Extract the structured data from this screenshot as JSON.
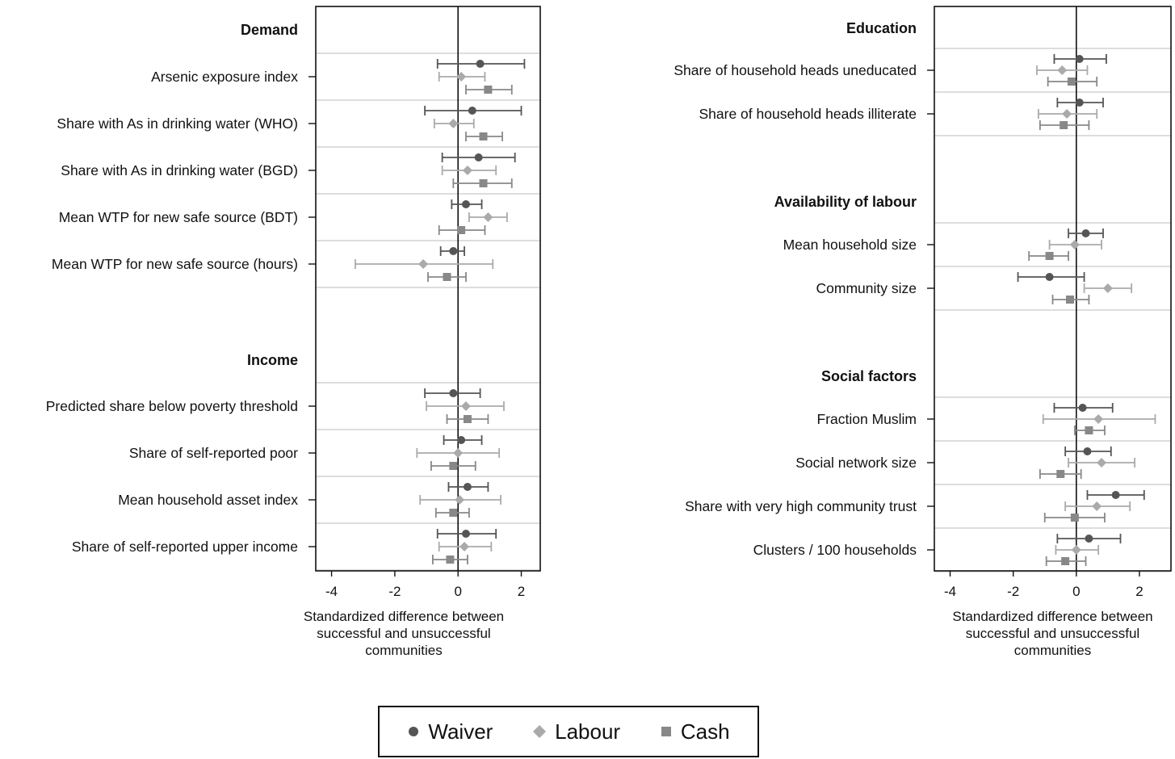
{
  "chart_data": {
    "type": "forest",
    "x_axis_label": "Standardized difference between successful and unsuccessful communities",
    "x_ticks": [
      -4,
      -2,
      0,
      2
    ],
    "legend": [
      {
        "name": "Waiver",
        "marker": "circle",
        "color": "#555555"
      },
      {
        "name": "Labour",
        "marker": "diamond",
        "color": "#aaaaaa"
      },
      {
        "name": "Cash",
        "marker": "square",
        "color": "#888888"
      }
    ],
    "panels": [
      {
        "xlim": [
          -4.5,
          2.6
        ],
        "sections": [
          {
            "title": "Demand",
            "items": [
              {
                "label": "Arsenic exposure index",
                "values": [
                  {
                    "series": "Waiver",
                    "est": 0.7,
                    "lo": -0.65,
                    "hi": 2.1
                  },
                  {
                    "series": "Labour",
                    "est": 0.1,
                    "lo": -0.6,
                    "hi": 0.85
                  },
                  {
                    "series": "Cash",
                    "est": 0.95,
                    "lo": 0.25,
                    "hi": 1.7
                  }
                ]
              },
              {
                "label": "Share with As in drinking water (WHO)",
                "values": [
                  {
                    "series": "Waiver",
                    "est": 0.45,
                    "lo": -1.05,
                    "hi": 2.0
                  },
                  {
                    "series": "Labour",
                    "est": -0.15,
                    "lo": -0.75,
                    "hi": 0.5
                  },
                  {
                    "series": "Cash",
                    "est": 0.8,
                    "lo": 0.25,
                    "hi": 1.4
                  }
                ]
              },
              {
                "label": "Share with As in drinking water (BGD)",
                "values": [
                  {
                    "series": "Waiver",
                    "est": 0.65,
                    "lo": -0.5,
                    "hi": 1.8
                  },
                  {
                    "series": "Labour",
                    "est": 0.3,
                    "lo": -0.5,
                    "hi": 1.2
                  },
                  {
                    "series": "Cash",
                    "est": 0.8,
                    "lo": -0.15,
                    "hi": 1.7
                  }
                ]
              },
              {
                "label": "Mean WTP for new safe source (BDT)",
                "values": [
                  {
                    "series": "Waiver",
                    "est": 0.25,
                    "lo": -0.2,
                    "hi": 0.75
                  },
                  {
                    "series": "Labour",
                    "est": 0.95,
                    "lo": 0.35,
                    "hi": 1.55
                  },
                  {
                    "series": "Cash",
                    "est": 0.1,
                    "lo": -0.6,
                    "hi": 0.85
                  }
                ]
              },
              {
                "label": "Mean WTP for new safe source (hours)",
                "values": [
                  {
                    "series": "Waiver",
                    "est": -0.15,
                    "lo": -0.55,
                    "hi": 0.2
                  },
                  {
                    "series": "Labour",
                    "est": -1.1,
                    "lo": -3.25,
                    "hi": 1.1
                  },
                  {
                    "series": "Cash",
                    "est": -0.35,
                    "lo": -0.95,
                    "hi": 0.25
                  }
                ]
              }
            ]
          },
          {
            "title": "Income",
            "items": [
              {
                "label": "Predicted share below poverty threshold",
                "values": [
                  {
                    "series": "Waiver",
                    "est": -0.15,
                    "lo": -1.05,
                    "hi": 0.7
                  },
                  {
                    "series": "Labour",
                    "est": 0.25,
                    "lo": -1.0,
                    "hi": 1.45
                  },
                  {
                    "series": "Cash",
                    "est": 0.3,
                    "lo": -0.35,
                    "hi": 0.95
                  }
                ]
              },
              {
                "label": "Share of self-reported poor",
                "values": [
                  {
                    "series": "Waiver",
                    "est": 0.1,
                    "lo": -0.45,
                    "hi": 0.75
                  },
                  {
                    "series": "Labour",
                    "est": 0.0,
                    "lo": -1.3,
                    "hi": 1.3
                  },
                  {
                    "series": "Cash",
                    "est": -0.15,
                    "lo": -0.85,
                    "hi": 0.55
                  }
                ]
              },
              {
                "label": "Mean household asset index",
                "values": [
                  {
                    "series": "Waiver",
                    "est": 0.3,
                    "lo": -0.3,
                    "hi": 0.95
                  },
                  {
                    "series": "Labour",
                    "est": 0.05,
                    "lo": -1.2,
                    "hi": 1.35
                  },
                  {
                    "series": "Cash",
                    "est": -0.15,
                    "lo": -0.7,
                    "hi": 0.35
                  }
                ]
              },
              {
                "label": "Share of self-reported upper income",
                "values": [
                  {
                    "series": "Waiver",
                    "est": 0.25,
                    "lo": -0.65,
                    "hi": 1.2
                  },
                  {
                    "series": "Labour",
                    "est": 0.2,
                    "lo": -0.6,
                    "hi": 1.05
                  },
                  {
                    "series": "Cash",
                    "est": -0.25,
                    "lo": -0.8,
                    "hi": 0.3
                  }
                ]
              }
            ]
          }
        ]
      },
      {
        "xlim": [
          -4.5,
          3.0
        ],
        "sections": [
          {
            "title": "Education",
            "items": [
              {
                "label": "Share of household heads uneducated",
                "values": [
                  {
                    "series": "Waiver",
                    "est": 0.1,
                    "lo": -0.7,
                    "hi": 0.95
                  },
                  {
                    "series": "Labour",
                    "est": -0.45,
                    "lo": -1.25,
                    "hi": 0.35
                  },
                  {
                    "series": "Cash",
                    "est": -0.15,
                    "lo": -0.9,
                    "hi": 0.65
                  }
                ]
              },
              {
                "label": "Share of household heads illiterate",
                "values": [
                  {
                    "series": "Waiver",
                    "est": 0.1,
                    "lo": -0.6,
                    "hi": 0.85
                  },
                  {
                    "series": "Labour",
                    "est": -0.3,
                    "lo": -1.2,
                    "hi": 0.65
                  },
                  {
                    "series": "Cash",
                    "est": -0.4,
                    "lo": -1.15,
                    "hi": 0.4
                  }
                ]
              }
            ]
          },
          {
            "title": "Availability of labour",
            "items": [
              {
                "label": "Mean household size",
                "values": [
                  {
                    "series": "Waiver",
                    "est": 0.3,
                    "lo": -0.25,
                    "hi": 0.85
                  },
                  {
                    "series": "Labour",
                    "est": -0.05,
                    "lo": -0.85,
                    "hi": 0.8
                  },
                  {
                    "series": "Cash",
                    "est": -0.85,
                    "lo": -1.5,
                    "hi": -0.25
                  }
                ]
              },
              {
                "label": "Community size",
                "values": [
                  {
                    "series": "Waiver",
                    "est": -0.85,
                    "lo": -1.85,
                    "hi": 0.25
                  },
                  {
                    "series": "Labour",
                    "est": 1.0,
                    "lo": 0.25,
                    "hi": 1.75
                  },
                  {
                    "series": "Cash",
                    "est": -0.2,
                    "lo": -0.75,
                    "hi": 0.4
                  }
                ]
              }
            ]
          },
          {
            "title": "Social factors",
            "items": [
              {
                "label": "Fraction Muslim",
                "values": [
                  {
                    "series": "Waiver",
                    "est": 0.2,
                    "lo": -0.7,
                    "hi": 1.15
                  },
                  {
                    "series": "Labour",
                    "est": 0.7,
                    "lo": -1.05,
                    "hi": 2.5
                  },
                  {
                    "series": "Cash",
                    "est": 0.4,
                    "lo": -0.05,
                    "hi": 0.9
                  }
                ]
              },
              {
                "label": "Social network size",
                "values": [
                  {
                    "series": "Waiver",
                    "est": 0.35,
                    "lo": -0.35,
                    "hi": 1.1
                  },
                  {
                    "series": "Labour",
                    "est": 0.8,
                    "lo": -0.25,
                    "hi": 1.85
                  },
                  {
                    "series": "Cash",
                    "est": -0.5,
                    "lo": -1.15,
                    "hi": 0.15
                  }
                ]
              },
              {
                "label": "Share with very high community trust",
                "values": [
                  {
                    "series": "Waiver",
                    "est": 1.25,
                    "lo": 0.35,
                    "hi": 2.15
                  },
                  {
                    "series": "Labour",
                    "est": 0.65,
                    "lo": -0.35,
                    "hi": 1.7
                  },
                  {
                    "series": "Cash",
                    "est": -0.05,
                    "lo": -1.0,
                    "hi": 0.9
                  }
                ]
              },
              {
                "label": "Clusters / 100 households",
                "values": [
                  {
                    "series": "Waiver",
                    "est": 0.4,
                    "lo": -0.6,
                    "hi": 1.4
                  },
                  {
                    "series": "Labour",
                    "est": 0.0,
                    "lo": -0.65,
                    "hi": 0.7
                  },
                  {
                    "series": "Cash",
                    "est": -0.35,
                    "lo": -0.95,
                    "hi": 0.3
                  }
                ]
              }
            ]
          }
        ]
      }
    ]
  }
}
